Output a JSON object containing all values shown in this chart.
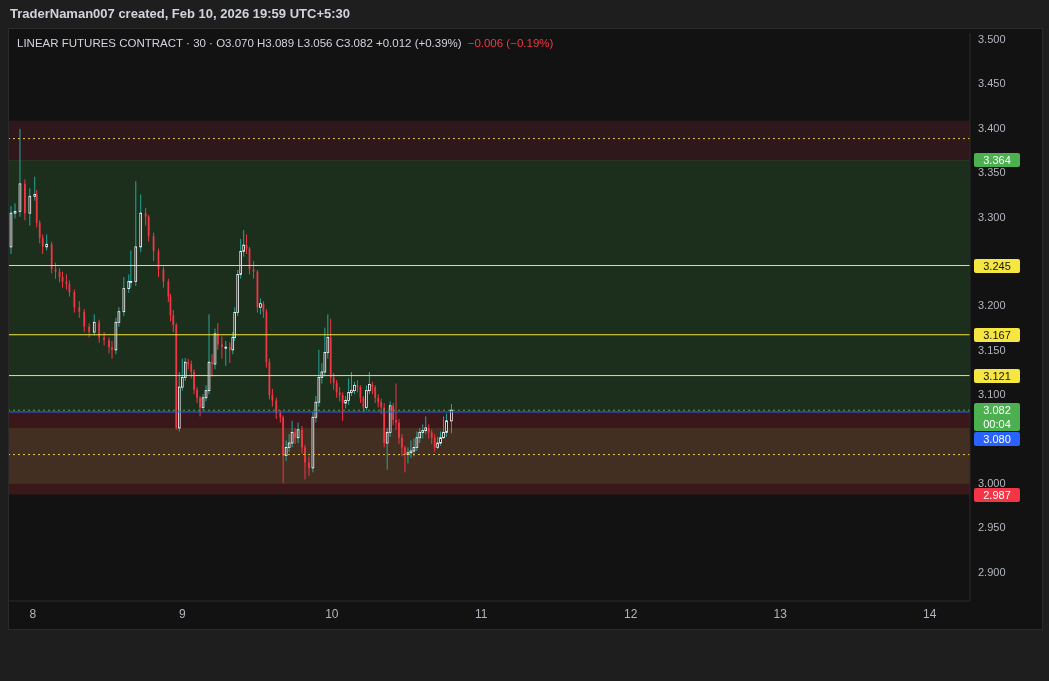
{
  "chart_data": {
    "type": "candlestick",
    "title": "TraderNaman007 created, Feb 10, 2026 19:59 UTC+5:30",
    "subtitle": "LINEAR FUTURES CONTRACT · 30 · O3.070 H3.089 L3.056 C3.082 +0.012 (+0.39%)",
    "annotations": [
      "−0.006 (−0.19%)"
    ],
    "x": [
      7.854,
      7.881,
      7.914,
      7.947,
      7.98,
      8.013,
      8.026,
      8.046,
      8.066,
      8.093,
      8.126,
      8.152,
      8.179,
      8.199,
      8.225,
      8.245,
      8.278,
      8.311,
      8.344,
      8.377,
      8.411,
      8.444,
      8.477,
      8.51,
      8.53,
      8.556,
      8.576,
      8.609,
      8.642,
      8.656,
      8.689,
      8.722,
      8.755,
      8.775,
      8.808,
      8.841,
      8.874,
      8.907,
      8.921,
      8.94,
      8.96,
      8.98,
      9.0,
      9.02,
      9.04,
      9.06,
      9.079,
      9.099,
      9.119,
      9.139,
      9.159,
      9.179,
      9.199,
      9.219,
      9.238,
      9.265,
      9.291,
      9.318,
      9.338,
      9.351,
      9.371,
      9.391,
      9.411,
      9.43,
      9.45,
      9.477,
      9.503,
      9.523,
      9.543,
      9.563,
      9.583,
      9.603,
      9.629,
      9.656,
      9.675,
      9.695,
      9.715,
      9.735,
      9.755,
      9.775,
      9.801,
      9.821,
      9.848,
      9.874,
      9.894,
      9.914,
      9.934,
      9.954,
      9.974,
      9.993,
      10.013,
      10.033,
      10.053,
      10.073,
      10.093,
      10.113,
      10.132,
      10.152,
      10.172,
      10.192,
      10.212,
      10.232,
      10.252,
      10.272,
      10.291,
      10.311,
      10.331,
      10.351,
      10.371,
      10.391,
      10.411,
      10.43,
      10.45,
      10.47,
      10.49,
      10.51,
      10.53,
      10.55,
      10.57,
      10.589,
      10.609,
      10.629,
      10.649,
      10.669,
      10.689,
      10.709,
      10.728,
      10.748,
      10.768,
      10.801
    ],
    "ohlc": [
      [
        3.266,
        3.312,
        3.258,
        3.304
      ],
      [
        3.304,
        3.315,
        3.298,
        3.306
      ],
      [
        3.306,
        3.399,
        3.3,
        3.337
      ],
      [
        3.337,
        3.342,
        3.296,
        3.304
      ],
      [
        3.304,
        3.332,
        3.29,
        3.323
      ],
      [
        3.323,
        3.345,
        3.318,
        3.325
      ],
      [
        3.325,
        3.33,
        3.288,
        3.293
      ],
      [
        3.293,
        3.296,
        3.27,
        3.276
      ],
      [
        3.276,
        3.28,
        3.258,
        3.266
      ],
      [
        3.266,
        3.28,
        3.262,
        3.269
      ],
      [
        3.269,
        3.272,
        3.236,
        3.241
      ],
      [
        3.241,
        3.248,
        3.23,
        3.238
      ],
      [
        3.238,
        3.242,
        3.226,
        3.232
      ],
      [
        3.232,
        3.238,
        3.22,
        3.227
      ],
      [
        3.227,
        3.235,
        3.218,
        3.224
      ],
      [
        3.224,
        3.228,
        3.21,
        3.215
      ],
      [
        3.215,
        3.218,
        3.192,
        3.198
      ],
      [
        3.198,
        3.205,
        3.186,
        3.193
      ],
      [
        3.193,
        3.196,
        3.17,
        3.176
      ],
      [
        3.176,
        3.18,
        3.164,
        3.17
      ],
      [
        3.17,
        3.19,
        3.166,
        3.181
      ],
      [
        3.181,
        3.184,
        3.158,
        3.164
      ],
      [
        3.164,
        3.17,
        3.155,
        3.161
      ],
      [
        3.161,
        3.164,
        3.146,
        3.153
      ],
      [
        3.153,
        3.16,
        3.14,
        3.15
      ],
      [
        3.15,
        3.186,
        3.145,
        3.181
      ],
      [
        3.181,
        3.198,
        3.176,
        3.193
      ],
      [
        3.193,
        3.232,
        3.188,
        3.219
      ],
      [
        3.219,
        3.235,
        3.214,
        3.227
      ],
      [
        3.227,
        3.262,
        3.22,
        3.227
      ],
      [
        3.227,
        3.34,
        3.222,
        3.266
      ],
      [
        3.266,
        3.325,
        3.26,
        3.304
      ],
      [
        3.304,
        3.31,
        3.29,
        3.3
      ],
      [
        3.3,
        3.302,
        3.272,
        3.278
      ],
      [
        3.278,
        3.282,
        3.25,
        3.261
      ],
      [
        3.261,
        3.264,
        3.232,
        3.241
      ],
      [
        3.241,
        3.244,
        3.22,
        3.227
      ],
      [
        3.227,
        3.23,
        3.204,
        3.21
      ],
      [
        3.21,
        3.213,
        3.182,
        3.189
      ],
      [
        3.189,
        3.195,
        3.17,
        3.178
      ],
      [
        3.178,
        3.18,
        3.06,
        3.062
      ],
      [
        3.062,
        3.125,
        3.058,
        3.108
      ],
      [
        3.108,
        3.14,
        3.104,
        3.119
      ],
      [
        3.119,
        3.141,
        3.115,
        3.136
      ],
      [
        3.136,
        3.14,
        3.128,
        3.134
      ],
      [
        3.134,
        3.138,
        3.118,
        3.125
      ],
      [
        3.125,
        3.128,
        3.1,
        3.105
      ],
      [
        3.105,
        3.108,
        3.09,
        3.096
      ],
      [
        3.096,
        3.098,
        3.075,
        3.085
      ],
      [
        3.085,
        3.1,
        3.082,
        3.096
      ],
      [
        3.096,
        3.11,
        3.092,
        3.104
      ],
      [
        3.104,
        3.19,
        3.1,
        3.136
      ],
      [
        3.136,
        3.145,
        3.12,
        3.134
      ],
      [
        3.134,
        3.174,
        3.128,
        3.168
      ],
      [
        3.168,
        3.18,
        3.15,
        3.156
      ],
      [
        3.156,
        3.165,
        3.14,
        3.153
      ],
      [
        3.153,
        3.16,
        3.132,
        3.153
      ],
      [
        3.153,
        3.158,
        3.135,
        3.15
      ],
      [
        3.15,
        3.17,
        3.145,
        3.164
      ],
      [
        3.164,
        3.198,
        3.16,
        3.192
      ],
      [
        3.192,
        3.24,
        3.188,
        3.235
      ],
      [
        3.235,
        3.275,
        3.23,
        3.261
      ],
      [
        3.261,
        3.285,
        3.255,
        3.268
      ],
      [
        3.268,
        3.28,
        3.258,
        3.264
      ],
      [
        3.264,
        3.266,
        3.235,
        3.241
      ],
      [
        3.241,
        3.25,
        3.23,
        3.238
      ],
      [
        3.238,
        3.24,
        3.192,
        3.198
      ],
      [
        3.198,
        3.208,
        3.19,
        3.202
      ],
      [
        3.202,
        3.205,
        3.186,
        3.193
      ],
      [
        3.193,
        3.196,
        3.13,
        3.136
      ],
      [
        3.136,
        3.14,
        3.094,
        3.099
      ],
      [
        3.099,
        3.106,
        3.086,
        3.093
      ],
      [
        3.093,
        3.096,
        3.072,
        3.079
      ],
      [
        3.079,
        3.082,
        3.068,
        3.074
      ],
      [
        3.074,
        3.076,
        3.0,
        3.031
      ],
      [
        3.031,
        3.048,
        3.025,
        3.04
      ],
      [
        3.04,
        3.055,
        3.035,
        3.045
      ],
      [
        3.045,
        3.07,
        3.04,
        3.057
      ],
      [
        3.057,
        3.062,
        3.044,
        3.051
      ],
      [
        3.051,
        3.068,
        3.045,
        3.06
      ],
      [
        3.06,
        3.064,
        3.033,
        3.04
      ],
      [
        3.04,
        3.043,
        3.004,
        3.023
      ],
      [
        3.023,
        3.03,
        3.008,
        3.017
      ],
      [
        3.017,
        3.08,
        3.012,
        3.074
      ],
      [
        3.074,
        3.098,
        3.068,
        3.091
      ],
      [
        3.091,
        3.15,
        3.086,
        3.119
      ],
      [
        3.119,
        3.135,
        3.112,
        3.125
      ],
      [
        3.125,
        3.175,
        3.12,
        3.147
      ],
      [
        3.147,
        3.19,
        3.14,
        3.164
      ],
      [
        3.164,
        3.185,
        3.112,
        3.119
      ],
      [
        3.119,
        3.124,
        3.105,
        3.113
      ],
      [
        3.113,
        3.116,
        3.096,
        3.102
      ],
      [
        3.102,
        3.108,
        3.092,
        3.099
      ],
      [
        3.099,
        3.102,
        3.07,
        3.09
      ],
      [
        3.09,
        3.098,
        3.084,
        3.093
      ],
      [
        3.093,
        3.118,
        3.088,
        3.102
      ],
      [
        3.102,
        3.125,
        3.098,
        3.104
      ],
      [
        3.104,
        3.114,
        3.1,
        3.11
      ],
      [
        3.11,
        3.116,
        3.102,
        3.108
      ],
      [
        3.108,
        3.11,
        3.09,
        3.096
      ],
      [
        3.096,
        3.098,
        3.08,
        3.085
      ],
      [
        3.085,
        3.11,
        3.082,
        3.104
      ],
      [
        3.104,
        3.125,
        3.1,
        3.111
      ],
      [
        3.111,
        3.114,
        3.1,
        3.108
      ],
      [
        3.108,
        3.11,
        3.09,
        3.096
      ],
      [
        3.096,
        3.1,
        3.085,
        3.091
      ],
      [
        3.091,
        3.095,
        3.078,
        3.085
      ],
      [
        3.085,
        3.09,
        3.04,
        3.045
      ],
      [
        3.045,
        3.062,
        3.015,
        3.057
      ],
      [
        3.057,
        3.092,
        3.052,
        3.087
      ],
      [
        3.087,
        3.09,
        3.065,
        3.071
      ],
      [
        3.071,
        3.112,
        3.06,
        3.068
      ],
      [
        3.068,
        3.072,
        3.044,
        3.051
      ],
      [
        3.051,
        3.055,
        3.03,
        3.04
      ],
      [
        3.04,
        3.042,
        3.012,
        3.032
      ],
      [
        3.032,
        3.04,
        3.022,
        3.034
      ],
      [
        3.034,
        3.048,
        3.028,
        3.036
      ],
      [
        3.036,
        3.05,
        3.03,
        3.04
      ],
      [
        3.04,
        3.058,
        3.036,
        3.051
      ],
      [
        3.051,
        3.062,
        3.045,
        3.057
      ],
      [
        3.057,
        3.066,
        3.05,
        3.059
      ],
      [
        3.059,
        3.075,
        3.055,
        3.062
      ],
      [
        3.062,
        3.066,
        3.05,
        3.057
      ],
      [
        3.057,
        3.06,
        3.044,
        3.051
      ],
      [
        3.051,
        3.055,
        3.035,
        3.04
      ],
      [
        3.04,
        3.052,
        3.038,
        3.045
      ],
      [
        3.045,
        3.058,
        3.042,
        3.051
      ],
      [
        3.051,
        3.075,
        3.05,
        3.057
      ],
      [
        3.057,
        3.078,
        3.052,
        3.07
      ],
      [
        3.07,
        3.089,
        3.056,
        3.082
      ]
    ],
    "xlim": [
      7.84,
      14.27
    ],
    "xticks": [
      8,
      9,
      10,
      11,
      12,
      13,
      14
    ],
    "ylim": [
      2.867,
      3.507
    ],
    "yticks": [
      {
        "value": 2.9,
        "label": "2.900"
      },
      {
        "value": 2.95,
        "label": "2.950"
      },
      {
        "value": 3.0,
        "label": "3.000"
      },
      {
        "value": 3.1,
        "label": "3.100"
      },
      {
        "value": 3.15,
        "label": "3.150"
      },
      {
        "value": 3.2,
        "label": "3.200"
      },
      {
        "value": 3.3,
        "label": "3.300"
      },
      {
        "value": 3.35,
        "label": "3.350"
      },
      {
        "value": 3.4,
        "label": "3.400"
      },
      {
        "value": 3.45,
        "label": "3.450"
      },
      {
        "value": 3.5,
        "label": "3.500"
      }
    ],
    "bands": [
      {
        "axis": "y",
        "from": 3.363,
        "to": 3.408,
        "color": "#b03a48"
      },
      {
        "axis": "y",
        "from": 2.999,
        "to": 3.062,
        "color": "#4caf50"
      },
      {
        "axis": "y",
        "from": 3.08,
        "to": 3.364,
        "label": "3.364",
        "color": "#4caf50"
      },
      {
        "axis": "y",
        "from": 3.08,
        "to": 2.987,
        "label": "2.987",
        "color": "#f23645"
      }
    ],
    "ref_lines": [
      {
        "axis": "y",
        "value": 3.388,
        "color": "#e8c84a",
        "line_style": "dotted"
      },
      {
        "axis": "y",
        "value": 3.032,
        "color": "#e8c84a",
        "line_style": "dotted"
      },
      {
        "axis": "y",
        "value": 3.245,
        "label": "3.245",
        "color": "#f5e642",
        "line_style": "solid"
      },
      {
        "axis": "y",
        "value": 3.167,
        "label": "3.167",
        "color": "#f5e642",
        "line_style": "solid"
      },
      {
        "axis": "y",
        "value": 3.121,
        "label": "3.121",
        "color": "#f5e642",
        "line_style": "solid"
      },
      {
        "axis": "y",
        "value": 3.082,
        "label": "3.082 00:04",
        "color": "#4caf50",
        "line_style": "dotted"
      },
      {
        "axis": "y",
        "value": 3.08,
        "label": "3.080",
        "color": "#2962ff",
        "line_style": "solid"
      }
    ]
  }
}
